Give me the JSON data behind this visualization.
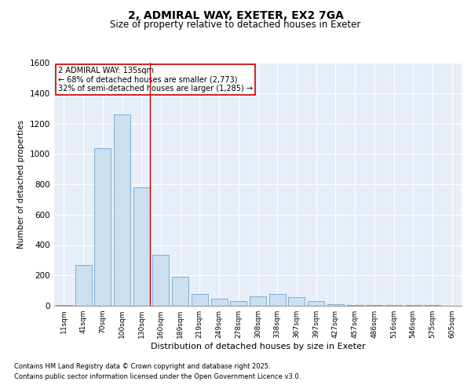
{
  "title1": "2, ADMIRAL WAY, EXETER, EX2 7GA",
  "title2": "Size of property relative to detached houses in Exeter",
  "xlabel": "Distribution of detached houses by size in Exeter",
  "ylabel": "Number of detached properties",
  "categories": [
    "11sqm",
    "41sqm",
    "70sqm",
    "100sqm",
    "130sqm",
    "160sqm",
    "189sqm",
    "219sqm",
    "249sqm",
    "278sqm",
    "308sqm",
    "338sqm",
    "367sqm",
    "397sqm",
    "427sqm",
    "457sqm",
    "486sqm",
    "516sqm",
    "546sqm",
    "575sqm",
    "605sqm"
  ],
  "values": [
    5,
    270,
    1040,
    1260,
    780,
    335,
    190,
    80,
    45,
    30,
    60,
    80,
    55,
    30,
    10,
    5,
    5,
    3,
    5,
    3,
    2
  ],
  "bar_color": "#ccdff0",
  "bar_edge_color": "#7aafd4",
  "bg_color": "#e8eef8",
  "grid_color": "#ffffff",
  "annotation_text_line1": "2 ADMIRAL WAY: 135sqm",
  "annotation_text_line2": "← 68% of detached houses are smaller (2,773)",
  "annotation_text_line3": "32% of semi-detached houses are larger (1,285) →",
  "annotation_box_color": "#ffffff",
  "annotation_box_edge": "#cc0000",
  "vline_color": "#cc0000",
  "vline_x": 4.42,
  "ylim": [
    0,
    1600
  ],
  "yticks": [
    0,
    200,
    400,
    600,
    800,
    1000,
    1200,
    1400,
    1600
  ],
  "footnote1": "Contains HM Land Registry data © Crown copyright and database right 2025.",
  "footnote2": "Contains public sector information licensed under the Open Government Licence v3.0."
}
